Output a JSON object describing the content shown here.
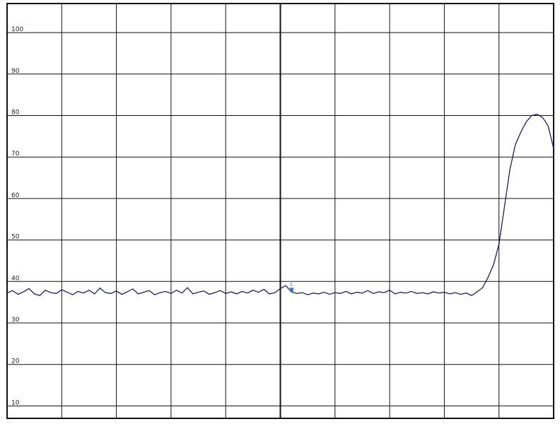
{
  "chart_data": {
    "type": "line",
    "x": [
      0,
      1,
      2,
      3,
      4,
      5,
      6,
      7,
      8,
      9,
      10,
      11,
      12,
      13,
      14,
      15,
      16,
      17,
      18,
      19,
      20,
      21,
      22,
      23,
      24,
      25,
      26,
      27,
      28,
      29,
      30,
      31,
      32,
      33,
      34,
      35,
      36,
      37,
      38,
      39,
      40,
      41,
      42,
      43,
      44,
      45,
      46,
      47,
      48,
      49,
      50,
      51,
      52,
      53,
      54,
      55,
      56,
      57,
      58,
      59,
      60,
      61,
      62,
      63,
      64,
      65,
      66,
      67,
      68,
      69,
      70,
      71,
      72,
      73,
      74,
      75,
      76,
      77,
      78,
      79,
      80,
      81,
      82,
      83,
      84,
      85,
      86,
      87,
      88,
      89,
      90,
      91,
      92,
      93,
      94,
      95,
      96,
      97,
      98,
      99,
      100
    ],
    "series": [
      {
        "color": "#1c1f6b",
        "values": [
          37.2,
          37.8,
          36.9,
          37.5,
          38.3,
          37.0,
          36.6,
          37.9,
          37.3,
          37.1,
          38.0,
          37.4,
          36.8,
          37.6,
          37.2,
          37.9,
          37.0,
          38.4,
          37.3,
          37.1,
          37.7,
          36.9,
          37.5,
          38.2,
          37.0,
          37.4,
          37.8,
          36.8,
          37.3,
          37.6,
          37.1,
          37.9,
          37.2,
          38.5,
          37.0,
          37.4,
          37.7,
          36.9,
          37.3,
          37.8,
          37.1,
          37.5,
          37.0,
          37.6,
          37.2,
          37.9,
          37.4,
          38.1,
          37.0,
          37.3,
          38.3,
          39.0,
          37.5,
          37.1,
          37.3,
          36.8,
          37.2,
          37.0,
          37.4,
          36.9,
          37.3,
          37.1,
          37.6,
          37.0,
          37.4,
          37.2,
          37.8,
          37.1,
          37.5,
          37.3,
          37.9,
          37.0,
          37.4,
          37.2,
          37.6,
          37.1,
          37.3,
          37.0,
          37.5,
          37.2,
          37.4,
          37.0,
          37.3,
          36.9,
          37.2,
          36.6,
          37.5,
          38.5,
          41,
          44,
          49,
          58,
          67,
          73,
          76,
          78.5,
          80,
          80.3,
          79.5,
          77.5,
          72
        ]
      }
    ],
    "annotations": [
      {
        "text": "1",
        "x": 52,
        "y": 38.5
      }
    ],
    "xlim": [
      0,
      100
    ],
    "xticks": [
      0,
      10,
      20,
      30,
      40,
      50,
      60,
      70,
      80,
      90,
      100
    ],
    "ylim": [
      7,
      107
    ],
    "yticks": [
      10,
      20,
      30,
      40,
      50,
      60,
      70,
      80,
      90,
      100
    ],
    "grid": true
  }
}
